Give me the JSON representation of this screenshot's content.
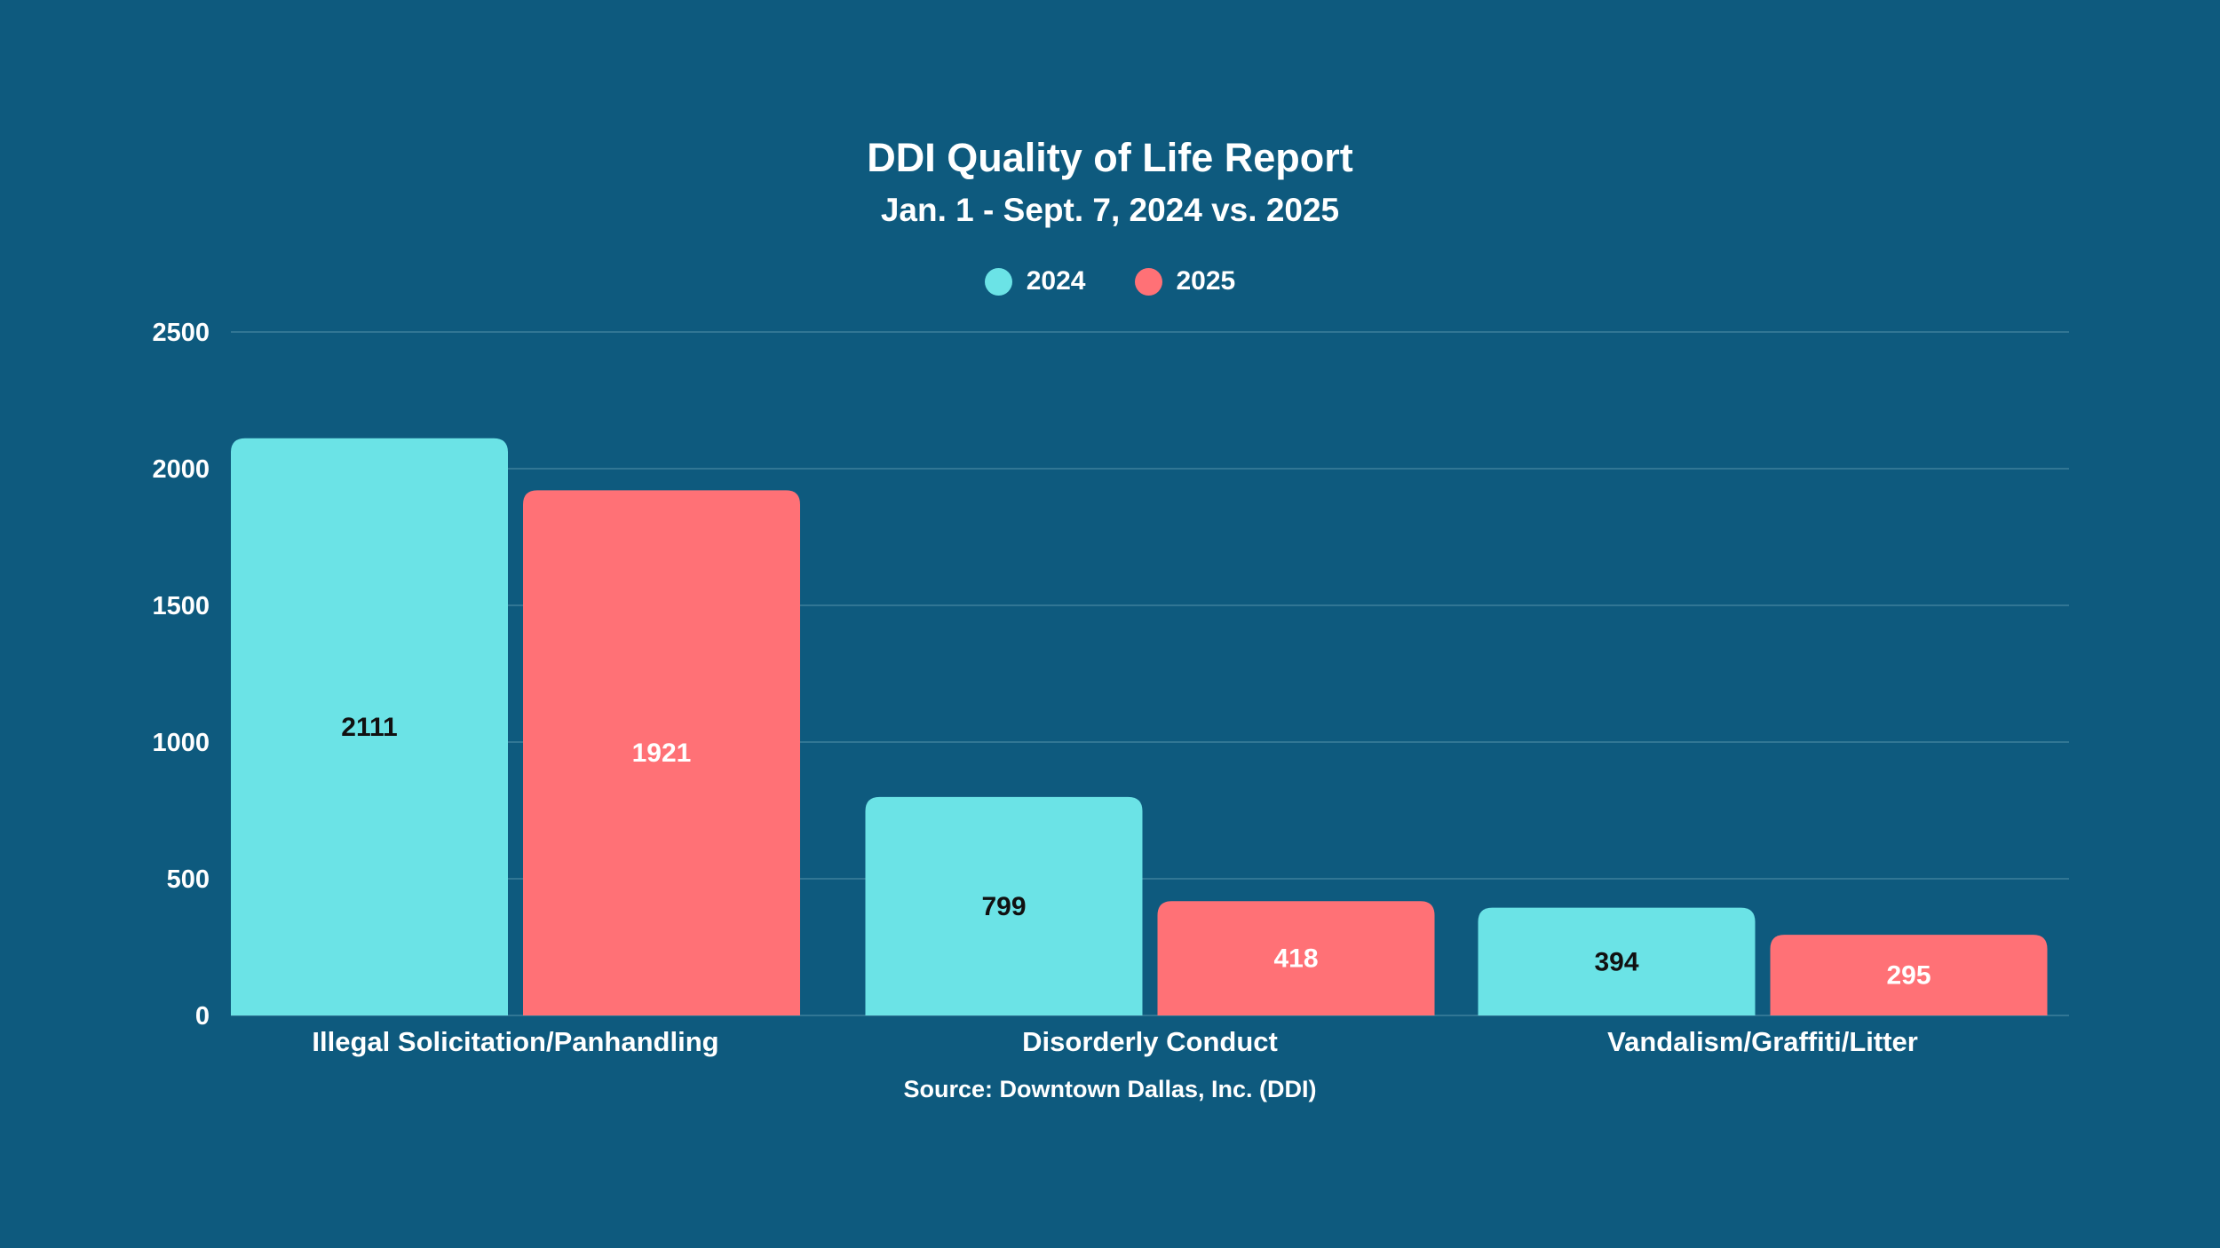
{
  "chart_data": {
    "type": "bar",
    "title": "DDI Quality of Life Report",
    "subtitle": "Jan. 1 - Sept. 7, 2024 vs. 2025",
    "categories": [
      "Illegal Solicitation/Panhandling",
      "Disorderly Conduct",
      "Vandalism/Graffiti/Litter"
    ],
    "series": [
      {
        "name": "2024",
        "values": [
          2111,
          799,
          394
        ],
        "color": "#6be3e6",
        "label_color": "#111111"
      },
      {
        "name": "2025",
        "values": [
          1921,
          418,
          295
        ],
        "color": "#ff7176",
        "label_color": "#ffffff"
      }
    ],
    "ylim": [
      0,
      2500
    ],
    "yticks": [
      0,
      500,
      1000,
      1500,
      2000,
      2500
    ],
    "xlabel": "",
    "ylabel": "",
    "grid": true,
    "legend_position": "top-center",
    "source": "Source: Downtown Dallas, Inc. (DDI)"
  },
  "colors": {
    "background": "#0e5a7e",
    "gridline": "#3d7f9c"
  }
}
